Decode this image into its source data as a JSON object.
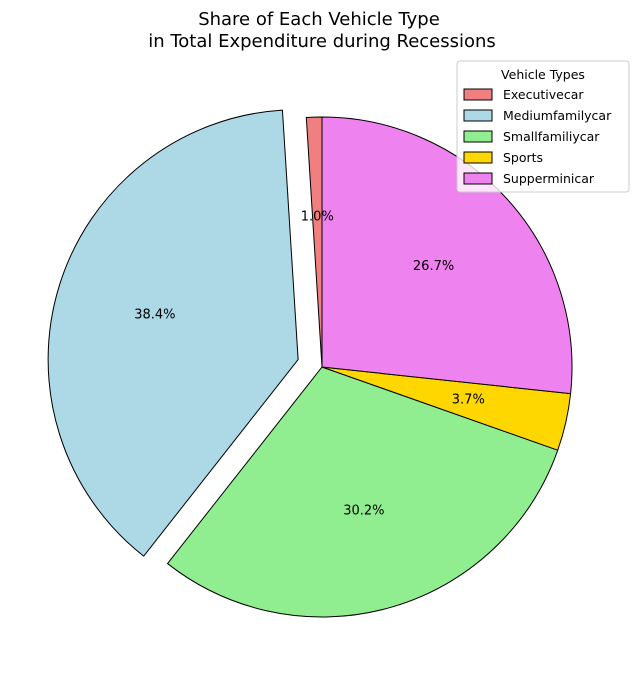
{
  "chart_data": {
    "type": "pie",
    "title_lines": [
      "Share of Each Vehicle Type",
      "in Total Expenditure during Recessions"
    ],
    "categories": [
      "Executivecar",
      "Mediumfamilycar",
      "Smallfamiliycar",
      "Sports",
      "Supperminicar"
    ],
    "values": [
      1.0,
      38.4,
      30.2,
      3.7,
      26.7
    ],
    "percent_labels": [
      "1.0%",
      "38.4%",
      "30.2%",
      "3.7%",
      "26.7%"
    ],
    "colors": [
      "#f08080",
      "#add8e6",
      "#90ee90",
      "#ffd700",
      "#ee82ee"
    ],
    "exploded": [
      false,
      true,
      false,
      false,
      false
    ],
    "legend": {
      "title": "Vehicle Types",
      "placement": "top-right"
    }
  }
}
